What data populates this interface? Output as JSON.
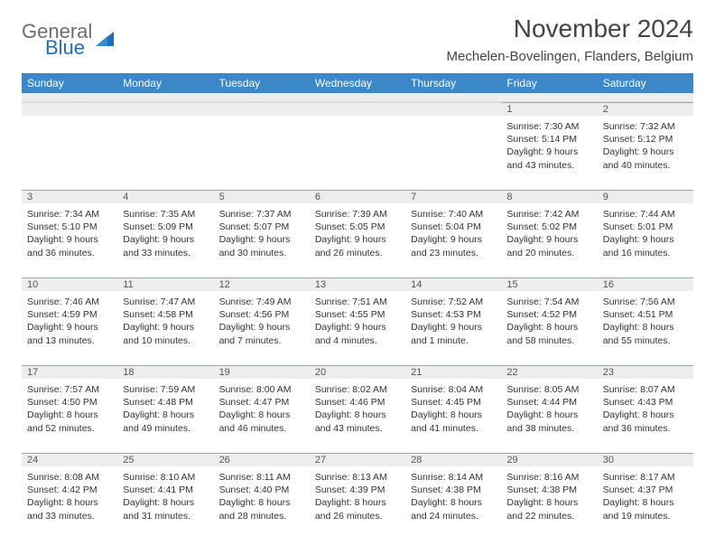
{
  "brand": {
    "general": "General",
    "blue": "Blue"
  },
  "title": "November 2024",
  "location": "Mechelen-Bovelingen, Flanders, Belgium",
  "day_names": [
    "Sunday",
    "Monday",
    "Tuesday",
    "Wednesday",
    "Thursday",
    "Friday",
    "Saturday"
  ],
  "colors": {
    "header_bg": "#3b87c8",
    "header_text": "#ffffff",
    "daynum_bg": "#ededed",
    "border": "#9aa6b2",
    "text": "#333333"
  },
  "typography": {
    "title_fontsize_pt": 21,
    "location_fontsize_pt": 11,
    "dayheader_fontsize_pt": 9,
    "cell_fontsize_pt": 8
  },
  "weeks": [
    [
      null,
      null,
      null,
      null,
      null,
      {
        "n": "1",
        "sunrise": "Sunrise: 7:30 AM",
        "sunset": "Sunset: 5:14 PM",
        "daylight": "Daylight: 9 hours and 43 minutes."
      },
      {
        "n": "2",
        "sunrise": "Sunrise: 7:32 AM",
        "sunset": "Sunset: 5:12 PM",
        "daylight": "Daylight: 9 hours and 40 minutes."
      }
    ],
    [
      {
        "n": "3",
        "sunrise": "Sunrise: 7:34 AM",
        "sunset": "Sunset: 5:10 PM",
        "daylight": "Daylight: 9 hours and 36 minutes."
      },
      {
        "n": "4",
        "sunrise": "Sunrise: 7:35 AM",
        "sunset": "Sunset: 5:09 PM",
        "daylight": "Daylight: 9 hours and 33 minutes."
      },
      {
        "n": "5",
        "sunrise": "Sunrise: 7:37 AM",
        "sunset": "Sunset: 5:07 PM",
        "daylight": "Daylight: 9 hours and 30 minutes."
      },
      {
        "n": "6",
        "sunrise": "Sunrise: 7:39 AM",
        "sunset": "Sunset: 5:05 PM",
        "daylight": "Daylight: 9 hours and 26 minutes."
      },
      {
        "n": "7",
        "sunrise": "Sunrise: 7:40 AM",
        "sunset": "Sunset: 5:04 PM",
        "daylight": "Daylight: 9 hours and 23 minutes."
      },
      {
        "n": "8",
        "sunrise": "Sunrise: 7:42 AM",
        "sunset": "Sunset: 5:02 PM",
        "daylight": "Daylight: 9 hours and 20 minutes."
      },
      {
        "n": "9",
        "sunrise": "Sunrise: 7:44 AM",
        "sunset": "Sunset: 5:01 PM",
        "daylight": "Daylight: 9 hours and 16 minutes."
      }
    ],
    [
      {
        "n": "10",
        "sunrise": "Sunrise: 7:46 AM",
        "sunset": "Sunset: 4:59 PM",
        "daylight": "Daylight: 9 hours and 13 minutes."
      },
      {
        "n": "11",
        "sunrise": "Sunrise: 7:47 AM",
        "sunset": "Sunset: 4:58 PM",
        "daylight": "Daylight: 9 hours and 10 minutes."
      },
      {
        "n": "12",
        "sunrise": "Sunrise: 7:49 AM",
        "sunset": "Sunset: 4:56 PM",
        "daylight": "Daylight: 9 hours and 7 minutes."
      },
      {
        "n": "13",
        "sunrise": "Sunrise: 7:51 AM",
        "sunset": "Sunset: 4:55 PM",
        "daylight": "Daylight: 9 hours and 4 minutes."
      },
      {
        "n": "14",
        "sunrise": "Sunrise: 7:52 AM",
        "sunset": "Sunset: 4:53 PM",
        "daylight": "Daylight: 9 hours and 1 minute."
      },
      {
        "n": "15",
        "sunrise": "Sunrise: 7:54 AM",
        "sunset": "Sunset: 4:52 PM",
        "daylight": "Daylight: 8 hours and 58 minutes."
      },
      {
        "n": "16",
        "sunrise": "Sunrise: 7:56 AM",
        "sunset": "Sunset: 4:51 PM",
        "daylight": "Daylight: 8 hours and 55 minutes."
      }
    ],
    [
      {
        "n": "17",
        "sunrise": "Sunrise: 7:57 AM",
        "sunset": "Sunset: 4:50 PM",
        "daylight": "Daylight: 8 hours and 52 minutes."
      },
      {
        "n": "18",
        "sunrise": "Sunrise: 7:59 AM",
        "sunset": "Sunset: 4:48 PM",
        "daylight": "Daylight: 8 hours and 49 minutes."
      },
      {
        "n": "19",
        "sunrise": "Sunrise: 8:00 AM",
        "sunset": "Sunset: 4:47 PM",
        "daylight": "Daylight: 8 hours and 46 minutes."
      },
      {
        "n": "20",
        "sunrise": "Sunrise: 8:02 AM",
        "sunset": "Sunset: 4:46 PM",
        "daylight": "Daylight: 8 hours and 43 minutes."
      },
      {
        "n": "21",
        "sunrise": "Sunrise: 8:04 AM",
        "sunset": "Sunset: 4:45 PM",
        "daylight": "Daylight: 8 hours and 41 minutes."
      },
      {
        "n": "22",
        "sunrise": "Sunrise: 8:05 AM",
        "sunset": "Sunset: 4:44 PM",
        "daylight": "Daylight: 8 hours and 38 minutes."
      },
      {
        "n": "23",
        "sunrise": "Sunrise: 8:07 AM",
        "sunset": "Sunset: 4:43 PM",
        "daylight": "Daylight: 8 hours and 36 minutes."
      }
    ],
    [
      {
        "n": "24",
        "sunrise": "Sunrise: 8:08 AM",
        "sunset": "Sunset: 4:42 PM",
        "daylight": "Daylight: 8 hours and 33 minutes."
      },
      {
        "n": "25",
        "sunrise": "Sunrise: 8:10 AM",
        "sunset": "Sunset: 4:41 PM",
        "daylight": "Daylight: 8 hours and 31 minutes."
      },
      {
        "n": "26",
        "sunrise": "Sunrise: 8:11 AM",
        "sunset": "Sunset: 4:40 PM",
        "daylight": "Daylight: 8 hours and 28 minutes."
      },
      {
        "n": "27",
        "sunrise": "Sunrise: 8:13 AM",
        "sunset": "Sunset: 4:39 PM",
        "daylight": "Daylight: 8 hours and 26 minutes."
      },
      {
        "n": "28",
        "sunrise": "Sunrise: 8:14 AM",
        "sunset": "Sunset: 4:38 PM",
        "daylight": "Daylight: 8 hours and 24 minutes."
      },
      {
        "n": "29",
        "sunrise": "Sunrise: 8:16 AM",
        "sunset": "Sunset: 4:38 PM",
        "daylight": "Daylight: 8 hours and 22 minutes."
      },
      {
        "n": "30",
        "sunrise": "Sunrise: 8:17 AM",
        "sunset": "Sunset: 4:37 PM",
        "daylight": "Daylight: 8 hours and 19 minutes."
      }
    ]
  ]
}
